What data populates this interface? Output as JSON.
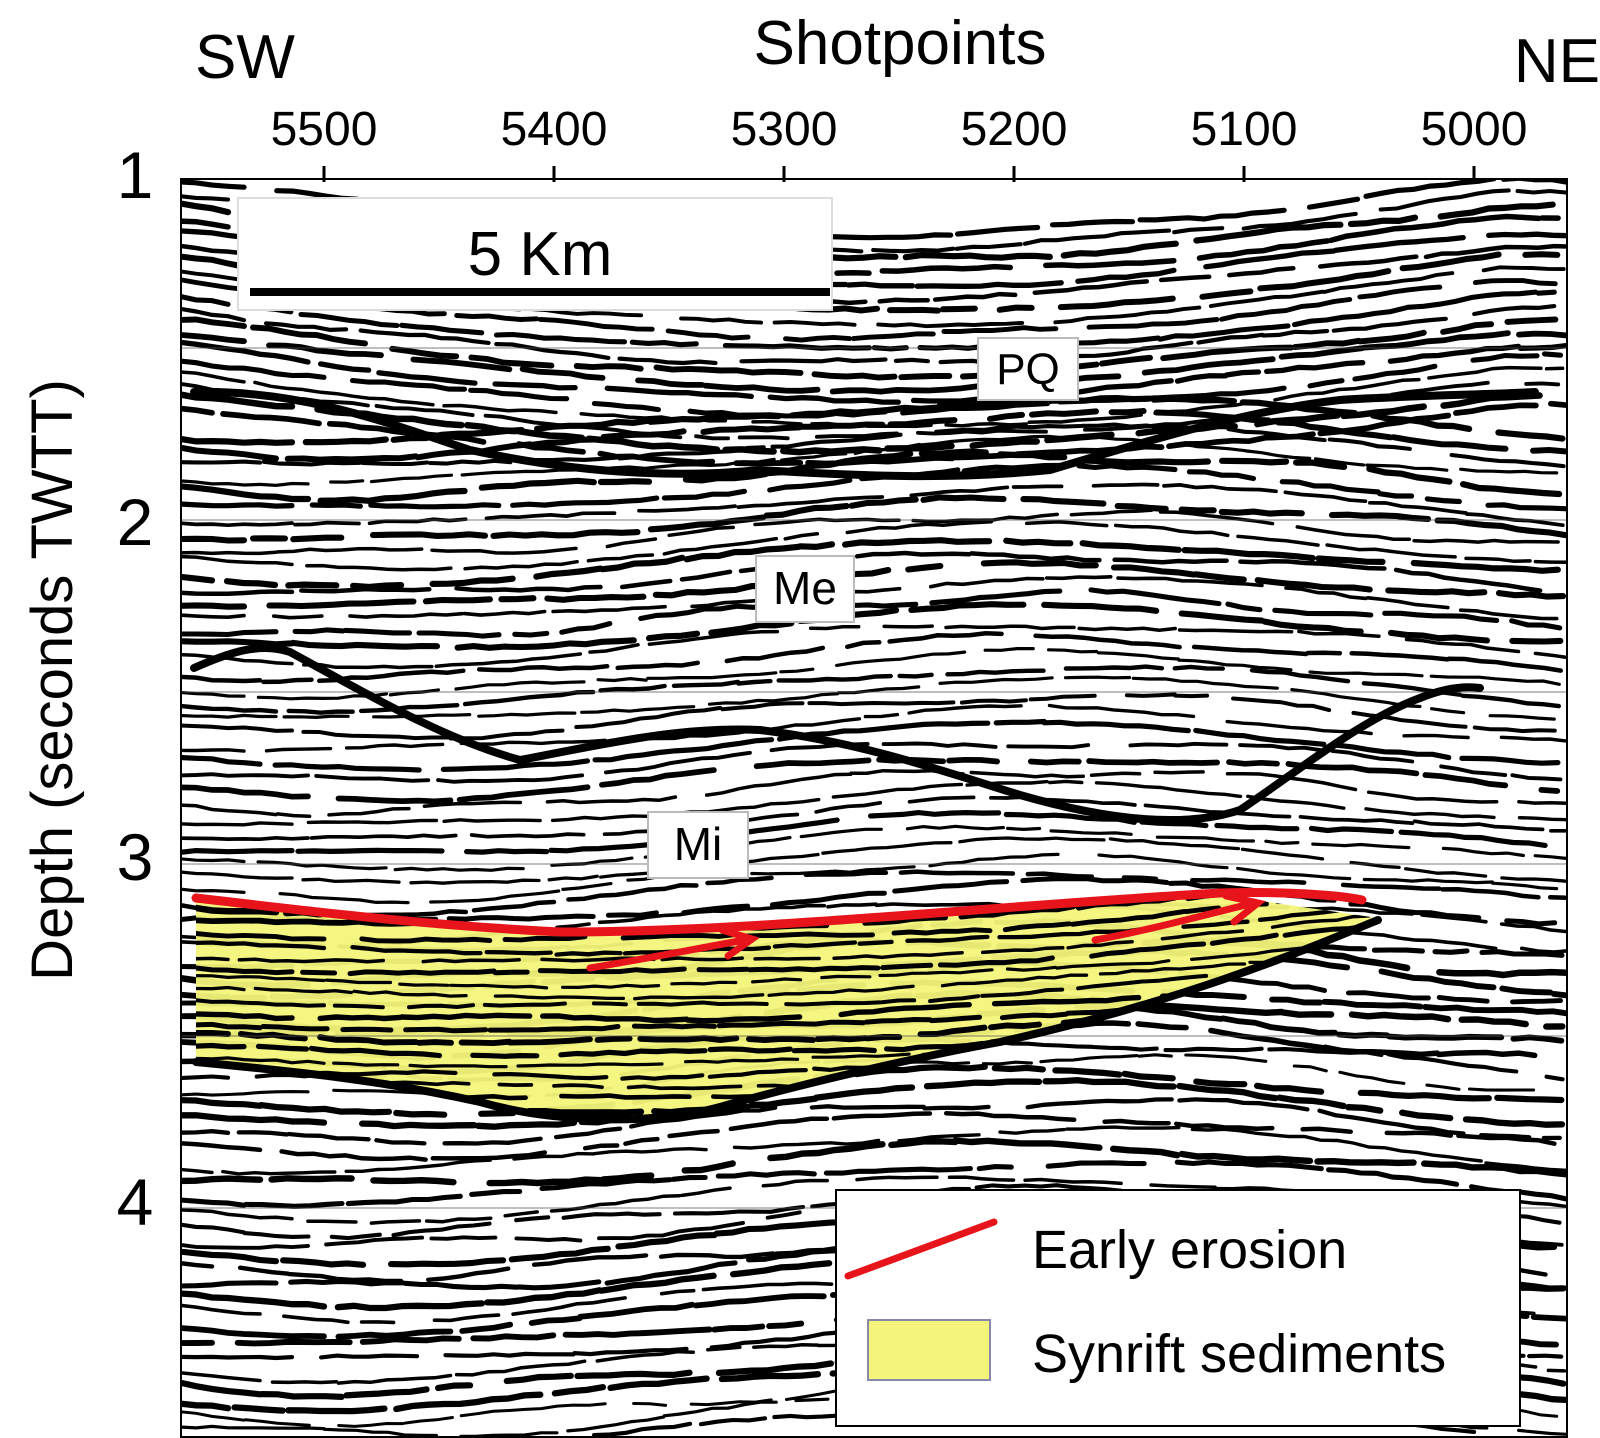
{
  "header": {
    "left_direction": "SW",
    "title": "Shotpoints",
    "right_direction": "NE"
  },
  "x_axis": {
    "ticks": [
      "5500",
      "5400",
      "5300",
      "5200",
      "5100",
      "5000"
    ]
  },
  "y_axis": {
    "label": "Depth (seconds TWTT)",
    "ticks": [
      "1",
      "2",
      "3",
      "4"
    ]
  },
  "scale_bar": {
    "label": "5 Km"
  },
  "units": [
    {
      "key": "PQ",
      "label": "PQ"
    },
    {
      "key": "Me",
      "label": "Me"
    },
    {
      "key": "Mi",
      "label": "Mi"
    }
  ],
  "legend": {
    "items": [
      {
        "label": "Early erosion",
        "color": "#e8141b"
      },
      {
        "label": "Synrift sediments",
        "color": "#f4f47a"
      }
    ]
  },
  "colors": {
    "horizon": "#000000",
    "erosion": "#e8141b",
    "synrift_fill": "#f4f47a",
    "seismic_background": "#ffffff"
  }
}
